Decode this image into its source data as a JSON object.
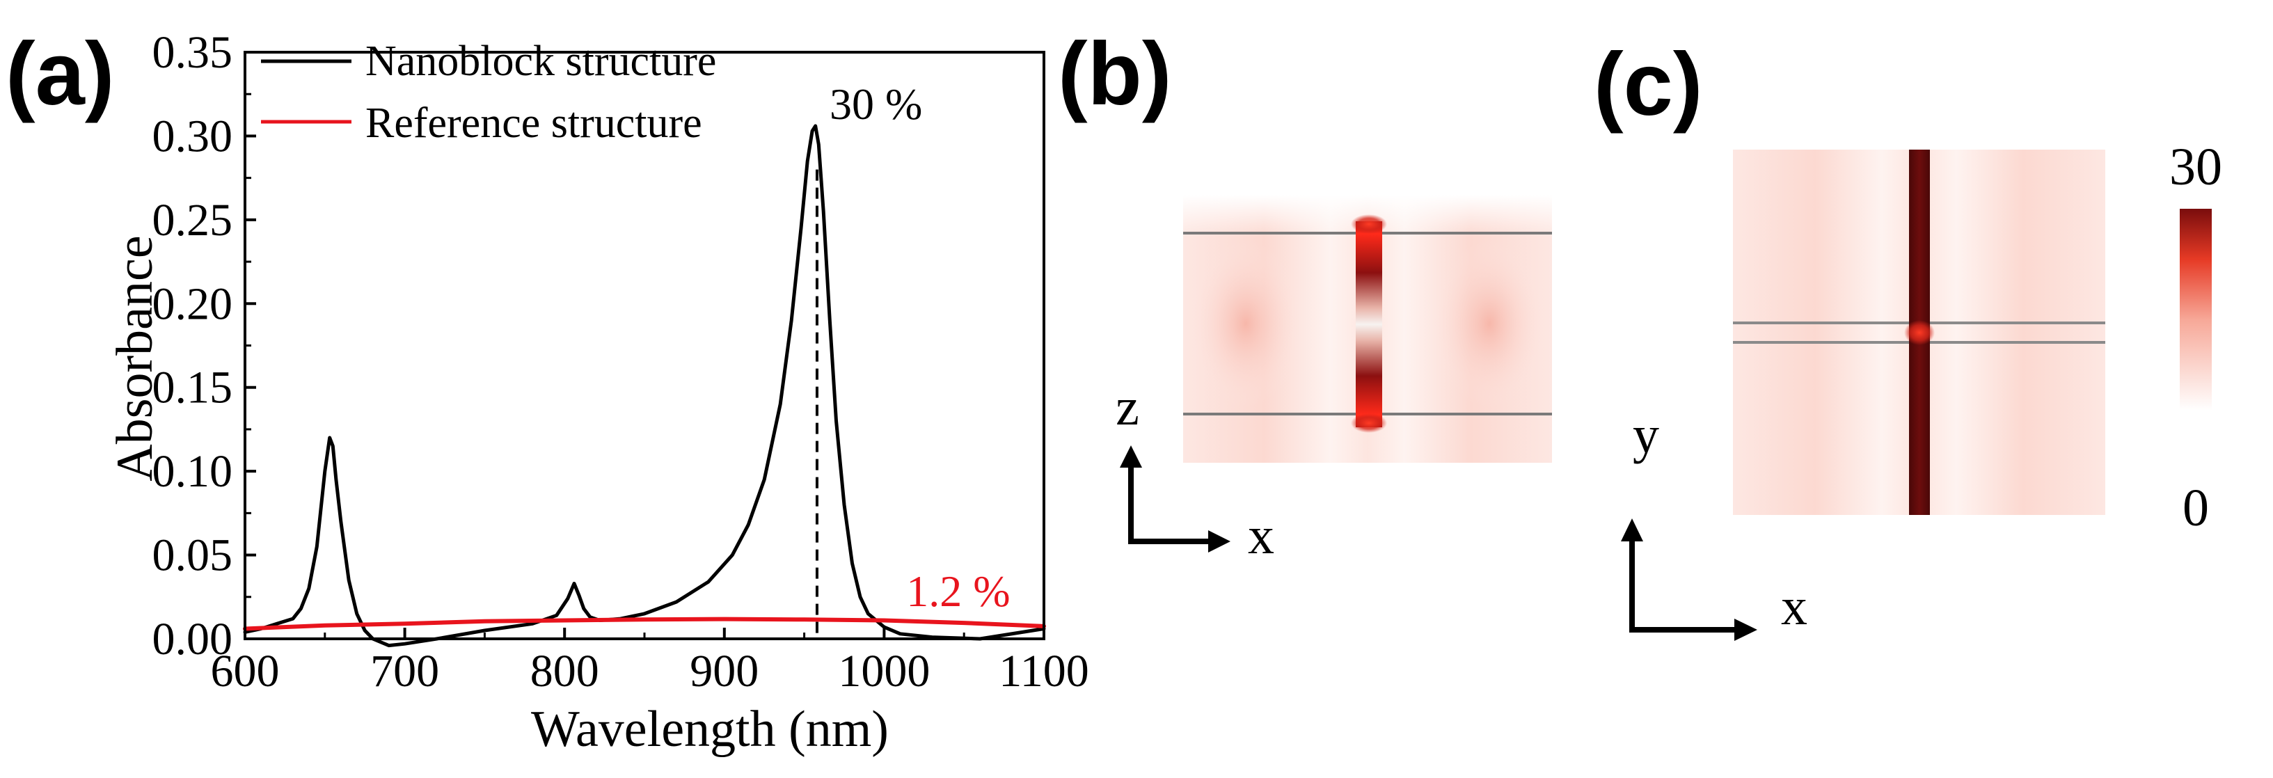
{
  "panels": {
    "a_label": "(a)",
    "b_label": "(b)",
    "c_label": "(c)"
  },
  "chart_data": {
    "type": "line",
    "title": "",
    "xlabel": "Wavelength (nm)",
    "ylabel": "Absorbance",
    "xlim": [
      600,
      1100
    ],
    "ylim": [
      0.0,
      0.35
    ],
    "xticks": [
      600,
      700,
      800,
      900,
      1000,
      1100
    ],
    "xtick_labels": [
      "600",
      "700",
      "800",
      "900",
      "1000",
      "1100"
    ],
    "yticks": [
      0.0,
      0.05,
      0.1,
      0.15,
      0.2,
      0.25,
      0.3,
      0.35
    ],
    "ytick_labels": [
      "0.00",
      "0.05",
      "0.10",
      "0.15",
      "0.20",
      "0.25",
      "0.30",
      "0.35"
    ],
    "legend_position": "top-left",
    "series": [
      {
        "name": "Nanoblock structure",
        "color": "#000000",
        "x": [
          600,
          610,
          620,
          630,
          635,
          640,
          645,
          650,
          653,
          655,
          657,
          660,
          665,
          670,
          675,
          680,
          690,
          700,
          720,
          750,
          780,
          795,
          802,
          806,
          809,
          812,
          816,
          822,
          835,
          850,
          870,
          890,
          905,
          915,
          925,
          935,
          942,
          948,
          952,
          955,
          957,
          959,
          962,
          966,
          970,
          975,
          980,
          985,
          990,
          1000,
          1010,
          1030,
          1060,
          1100
        ],
        "values": [
          0.004,
          0.006,
          0.009,
          0.012,
          0.018,
          0.03,
          0.055,
          0.1,
          0.12,
          0.115,
          0.095,
          0.07,
          0.035,
          0.015,
          0.005,
          0.0,
          -0.004,
          -0.003,
          0.0,
          0.005,
          0.009,
          0.014,
          0.024,
          0.033,
          0.026,
          0.018,
          0.013,
          0.011,
          0.012,
          0.015,
          0.022,
          0.034,
          0.05,
          0.068,
          0.095,
          0.14,
          0.19,
          0.245,
          0.285,
          0.303,
          0.306,
          0.295,
          0.255,
          0.19,
          0.13,
          0.08,
          0.045,
          0.025,
          0.015,
          0.007,
          0.003,
          0.001,
          0.0,
          0.006
        ]
      },
      {
        "name": "Reference structure",
        "color": "#e8141d",
        "x": [
          600,
          650,
          700,
          750,
          800,
          850,
          900,
          950,
          1000,
          1050,
          1100
        ],
        "values": [
          0.006,
          0.008,
          0.009,
          0.0105,
          0.011,
          0.0115,
          0.0118,
          0.0115,
          0.011,
          0.0095,
          0.0075
        ]
      }
    ],
    "annotations": [
      {
        "text": "30 %",
        "x": 958,
        "y": 0.306,
        "color": "#000000"
      },
      {
        "text": "1.2 %",
        "x": 1040,
        "y": 0.012,
        "color": "#e8141d"
      }
    ],
    "peak_marker_x": 958
  },
  "field_maps": {
    "b": {
      "axis_vertical": "z",
      "axis_horizontal": "x"
    },
    "c": {
      "axis_vertical": "y",
      "axis_horizontal": "x",
      "colorbar_max": "30",
      "colorbar_min": "0",
      "colorbar_color_high": "#7a0d0d",
      "colorbar_color_low": "#ffffff"
    }
  }
}
